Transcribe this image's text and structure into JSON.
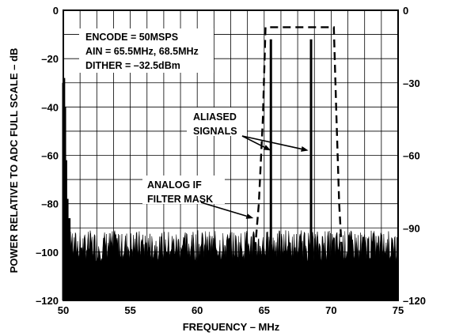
{
  "chart_data": {
    "type": "line",
    "xlabel": "FREQUENCY – MHz",
    "ylabel_left": "POWER RELATIVE TO ADC FULL SCALE – dB",
    "xlim": [
      50,
      75
    ],
    "ylim_left": [
      -120,
      0
    ],
    "ylim_right": [
      -120,
      0
    ],
    "x_ticks": [
      {
        "value": 50,
        "label": "50"
      },
      {
        "value": 55,
        "label": "55"
      },
      {
        "value": 60,
        "label": "60"
      },
      {
        "value": 65,
        "label": "65"
      },
      {
        "value": 70,
        "label": "70"
      },
      {
        "value": 75,
        "label": "75"
      }
    ],
    "y_ticks_left": [
      {
        "value": 0,
        "label": "0"
      },
      {
        "value": -20,
        "label": "–20"
      },
      {
        "value": -40,
        "label": "–40"
      },
      {
        "value": -60,
        "label": "–60"
      },
      {
        "value": -80,
        "label": "–80"
      },
      {
        "value": -100,
        "label": "–100"
      },
      {
        "value": -120,
        "label": "–120"
      }
    ],
    "y_ticks_right": [
      {
        "value": 0,
        "label": "0"
      },
      {
        "value": -30,
        "label": "–30"
      },
      {
        "value": -60,
        "label": "–60"
      },
      {
        "value": -90,
        "label": "–90"
      },
      {
        "value": -120,
        "label": "–120"
      }
    ],
    "grid": true,
    "x_grid_step": 1.25,
    "y_grid_step": 10,
    "info_box": [
      "ENCODE = 50MSPS",
      "AIN = 65.5MHz, 68.5MHz",
      "DITHER = –32.5dBm"
    ],
    "spectrum_spikes": [
      {
        "x": 50.0,
        "y": -30
      },
      {
        "x": 50.05,
        "y": -28
      },
      {
        "x": 50.12,
        "y": -40
      },
      {
        "x": 50.2,
        "y": -62
      },
      {
        "x": 50.3,
        "y": -78
      },
      {
        "x": 50.45,
        "y": -86
      },
      {
        "x": 65.5,
        "y": -12
      },
      {
        "x": 68.5,
        "y": -12
      }
    ],
    "noise_floor": {
      "range": [
        50,
        75
      ],
      "level_min": -100,
      "level_max": -91
    },
    "filter_mask": {
      "x": [
        64.0,
        64.6,
        64.9,
        65.1,
        70.2,
        70.4,
        70.6,
        71.0
      ],
      "y": [
        -120,
        -80,
        -45,
        -7,
        -7,
        -45,
        -80,
        -120
      ]
    },
    "annotations": [
      {
        "lines": [
          "ALIASED",
          "SIGNALS"
        ],
        "arrows_to": [
          {
            "x": 65.5,
            "y": -58
          },
          {
            "x": 68.3,
            "y": -58
          }
        ]
      },
      {
        "lines": [
          "ANALOG IF",
          "FILTER MASK"
        ],
        "arrows_to": [
          {
            "x": 64.2,
            "y": -86
          }
        ]
      }
    ]
  }
}
